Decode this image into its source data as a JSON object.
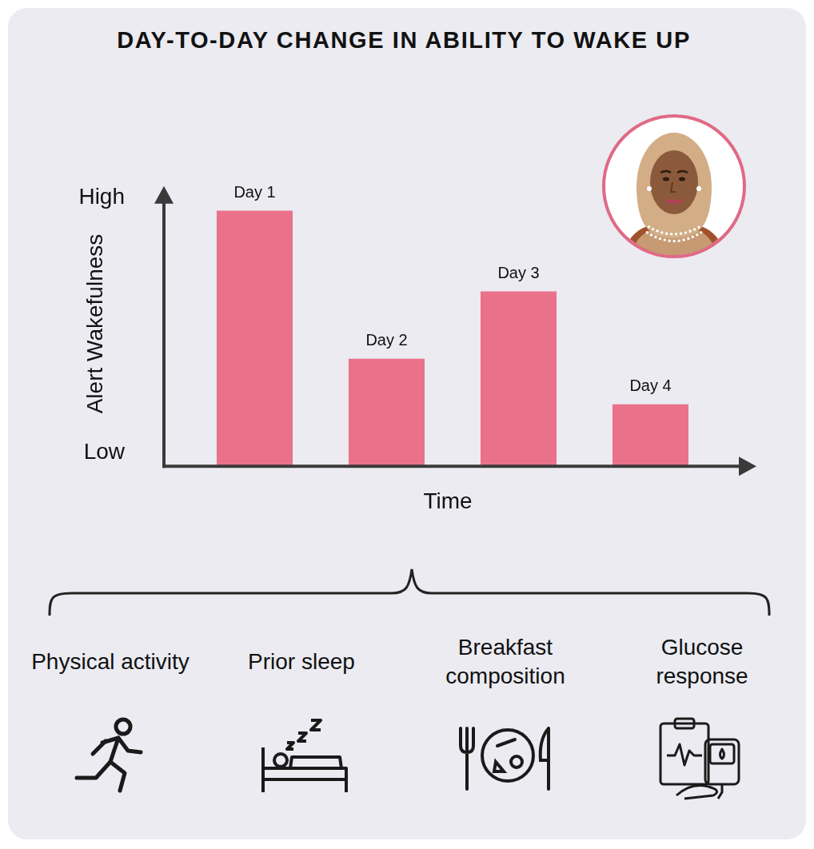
{
  "chart_data": {
    "type": "bar",
    "title": "DAY-TO-DAY CHANGE IN ABILITY TO WAKE UP",
    "x_label": "Time",
    "y_label": "Alert Wakefulness",
    "categories": [
      "Day 1",
      "Day 2",
      "Day 3",
      "Day 4"
    ],
    "values": [
      95,
      40,
      65,
      23
    ],
    "color": "#e9728a",
    "ylim": [
      0,
      100
    ],
    "yticks": [
      {
        "value": 5,
        "label": "Low"
      },
      {
        "value": 100,
        "label": "High"
      }
    ],
    "grid": false,
    "tick_labels": "y"
  },
  "factors": [
    "Physical activity",
    "Prior sleep",
    "Breakfast composition",
    "Glucose response"
  ]
}
